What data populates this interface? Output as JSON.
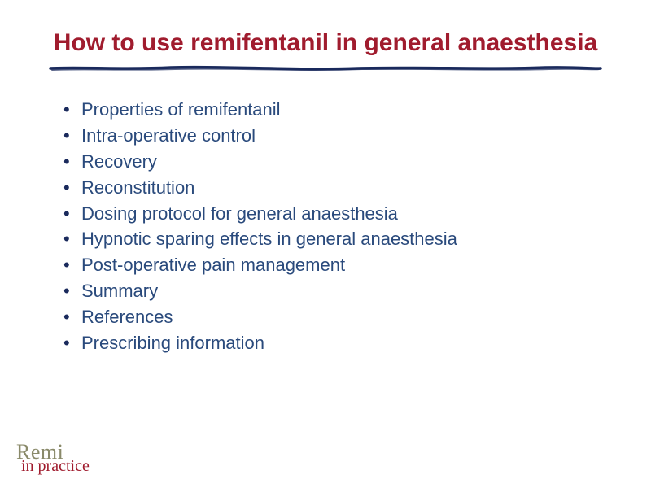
{
  "title": "How to use remifentanil in general anaesthesia",
  "title_color": "#a01c2e",
  "title_fontsize": 30,
  "underline_color": "#1a2a5c",
  "bullet_color": "#1a2a5c",
  "bullet_text_color": "#2a4a7c",
  "bullet_fontsize": 22,
  "bullets": [
    "Properties of remifentanil",
    "Intra-operative control",
    "Recovery",
    "Reconstitution",
    "Dosing protocol for general anaesthesia",
    "Hypnotic sparing effects in general anaesthesia",
    "Post-operative pain management",
    "Summary",
    "References",
    "Prescribing information"
  ],
  "logo": {
    "main": "Remi",
    "main_color": "#8a8a6a",
    "main_fontsize": 26,
    "sub": "in practice",
    "sub_color": "#a01c2e",
    "sub_fontsize": 20
  },
  "background_color": "#ffffff"
}
